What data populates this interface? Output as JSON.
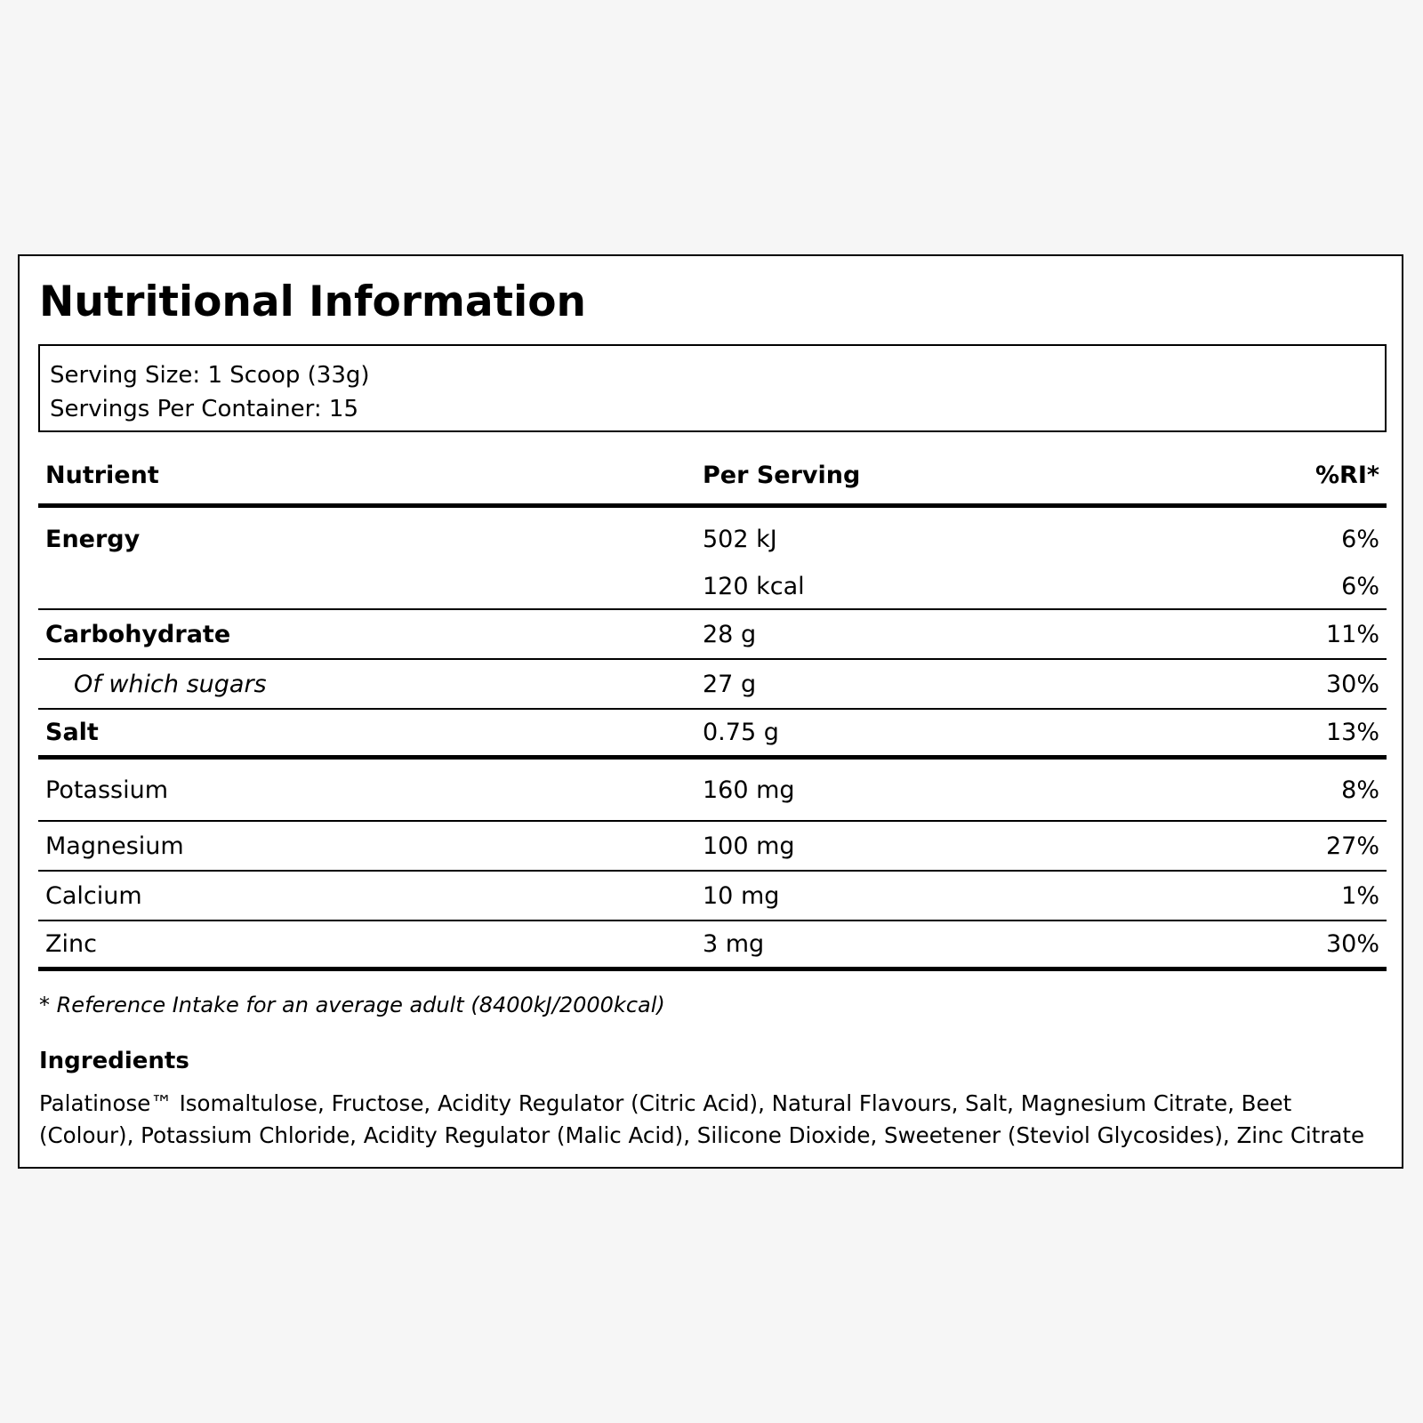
{
  "title": "Nutritional Information",
  "serving": {
    "size": "Serving Size: 1 Scoop (33g)",
    "per_container": "Servings Per Container: 15"
  },
  "table": {
    "headers": {
      "nutrient": "Nutrient",
      "per_serving": "Per Serving",
      "ri": "%RI*"
    },
    "energy": {
      "name": "Energy",
      "kj": "502 kJ",
      "kj_ri": "6%",
      "kcal": "120 kcal",
      "kcal_ri": "6%"
    },
    "carbohydrate": {
      "name": "Carbohydrate",
      "value": "28 g",
      "ri": "11%"
    },
    "sugars": {
      "name": "Of which sugars",
      "value": "27 g",
      "ri": "30%"
    },
    "salt": {
      "name": "Salt",
      "value": "0.75 g",
      "ri": "13%"
    },
    "potassium": {
      "name": "Potassium",
      "value": "160 mg",
      "ri": "8%"
    },
    "magnesium": {
      "name": "Magnesium",
      "value": "100 mg",
      "ri": "27%"
    },
    "calcium": {
      "name": "Calcium",
      "value": "10 mg",
      "ri": "1%"
    },
    "zinc": {
      "name": "Zinc",
      "value": "3 mg",
      "ri": "30%"
    }
  },
  "footnote": "* Reference Intake for an average adult (8400kJ/2000kcal)",
  "ingredients": {
    "heading": "Ingredients",
    "text": "Palatinose™ Isomaltulose, Fructose, Acidity Regulator (Citric Acid), Natural Flavours, Salt, Magnesium Citrate, Beet (Colour), Potassium Chloride, Acidity Regulator (Malic Acid), Silicone Dioxide, Sweetener (Steviol Glycosides), Zinc Citrate"
  }
}
